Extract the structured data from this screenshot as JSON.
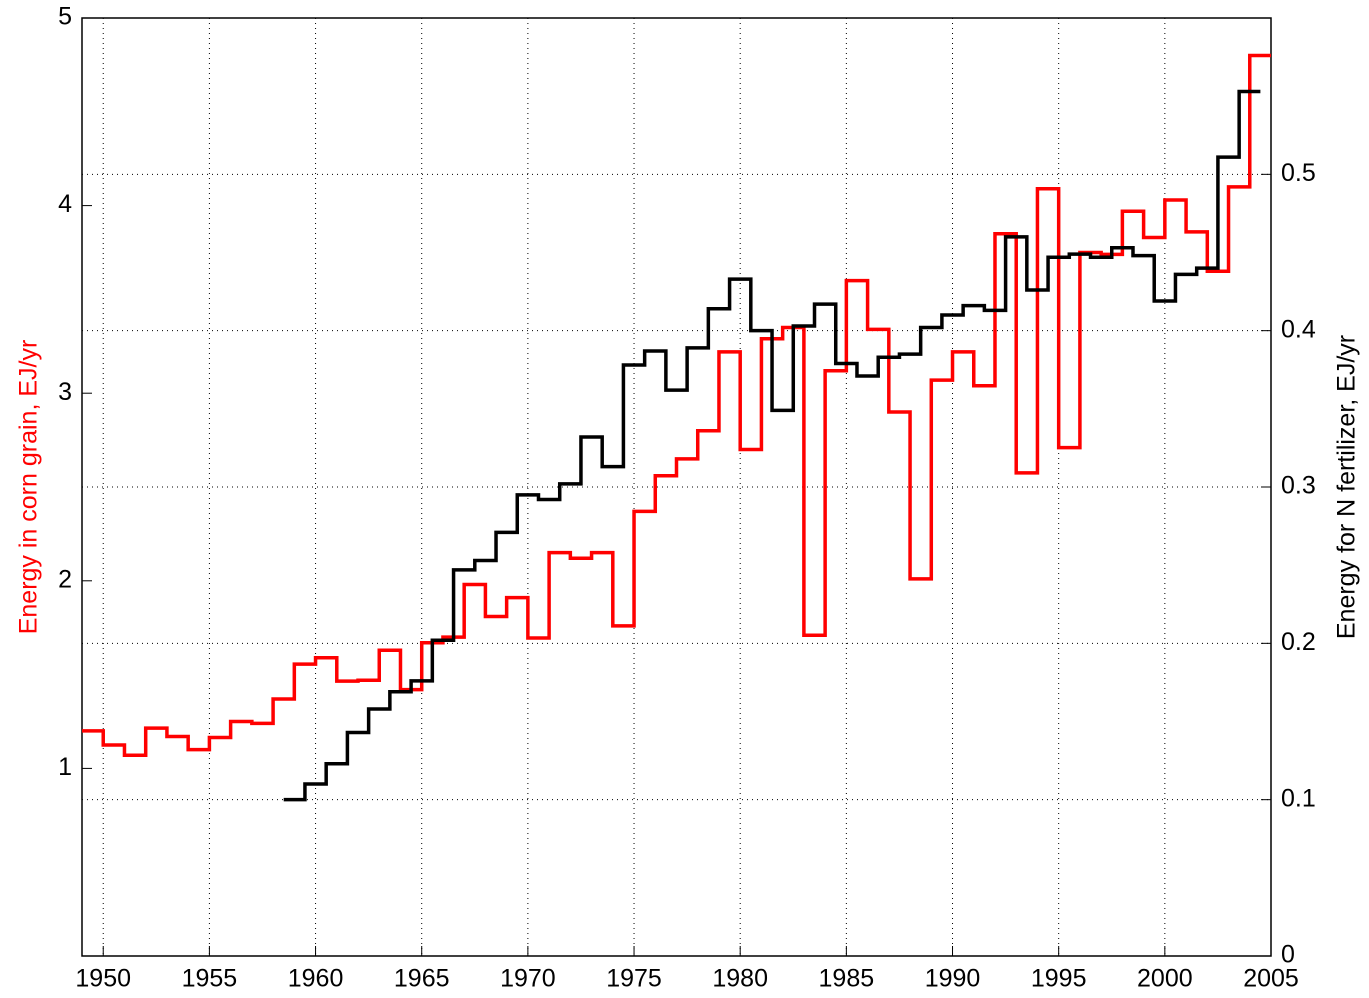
{
  "chart_data": {
    "type": "line",
    "ylabel": "Energy in corn grain, EJ/yr",
    "y2label": "Energy for N fertilizer, EJ/yr",
    "xlim": [
      1949,
      2005
    ],
    "xticks": [
      1950,
      1955,
      1960,
      1965,
      1970,
      1975,
      1980,
      1985,
      1990,
      1995,
      2000,
      2005
    ],
    "ylim": [
      0,
      5
    ],
    "yticks": [
      1,
      2,
      3,
      4,
      5
    ],
    "y2lim": [
      0,
      0.6
    ],
    "y2ticks": [
      0,
      0.1,
      0.2,
      0.3,
      0.4,
      0.5
    ],
    "grid": true,
    "ylabel_color": "#ff0000",
    "series": [
      {
        "color": "#ff0000",
        "step": "post",
        "axis": "y",
        "x": [
          1949,
          1950,
          1951,
          1952,
          1953,
          1954,
          1955,
          1956,
          1957,
          1958,
          1959,
          1960,
          1961,
          1962,
          1963,
          1964,
          1965,
          1966,
          1967,
          1968,
          1969,
          1970,
          1971,
          1972,
          1973,
          1974,
          1975,
          1976,
          1977,
          1978,
          1979,
          1980,
          1981,
          1982,
          1983,
          1984,
          1985,
          1986,
          1987,
          1988,
          1989,
          1990,
          1991,
          1992,
          1993,
          1994,
          1995,
          1996,
          1997,
          1998,
          1999,
          2000,
          2001,
          2002,
          2003,
          2004
        ],
        "values": [
          1.2,
          1.125,
          1.07,
          1.215,
          1.17,
          1.1,
          1.165,
          1.25,
          1.24,
          1.37,
          1.556,
          1.59,
          1.465,
          1.47,
          1.63,
          1.42,
          1.67,
          1.7,
          1.98,
          1.81,
          1.91,
          1.695,
          2.15,
          2.12,
          2.15,
          1.76,
          2.37,
          2.56,
          2.65,
          2.8,
          3.22,
          2.7,
          3.29,
          3.35,
          1.71,
          3.12,
          3.6,
          3.34,
          2.9,
          2.01,
          3.07,
          3.22,
          3.04,
          3.85,
          2.575,
          4.09,
          2.71,
          3.75,
          3.74,
          3.97,
          3.83,
          4.03,
          3.86,
          3.65,
          4.1,
          4.8
        ]
      },
      {
        "color": "#000000",
        "step": "mid",
        "axis": "y2",
        "x": [
          1959,
          1960,
          1961,
          1962,
          1963,
          1964,
          1965,
          1966,
          1967,
          1968,
          1969,
          1970,
          1971,
          1972,
          1973,
          1974,
          1975,
          1976,
          1977,
          1978,
          1979,
          1980,
          1981,
          1982,
          1983,
          1984,
          1985,
          1986,
          1987,
          1988,
          1989,
          1990,
          1991,
          1992,
          1993,
          1994,
          1995,
          1996,
          1997,
          1998,
          1999,
          2000,
          2001,
          2002,
          2003,
          2004
        ],
        "values": [
          0.1,
          0.11,
          0.123,
          0.143,
          0.158,
          0.169,
          0.176,
          0.202,
          0.247,
          0.253,
          0.271,
          0.295,
          0.292,
          0.302,
          0.332,
          0.313,
          0.378,
          0.387,
          0.362,
          0.389,
          0.414,
          0.433,
          0.4,
          0.349,
          0.403,
          0.417,
          0.379,
          0.371,
          0.383,
          0.385,
          0.402,
          0.41,
          0.416,
          0.413,
          0.46,
          0.426,
          0.447,
          0.449,
          0.447,
          0.453,
          0.448,
          0.419,
          0.436,
          0.44,
          0.511,
          0.553
        ]
      }
    ]
  }
}
